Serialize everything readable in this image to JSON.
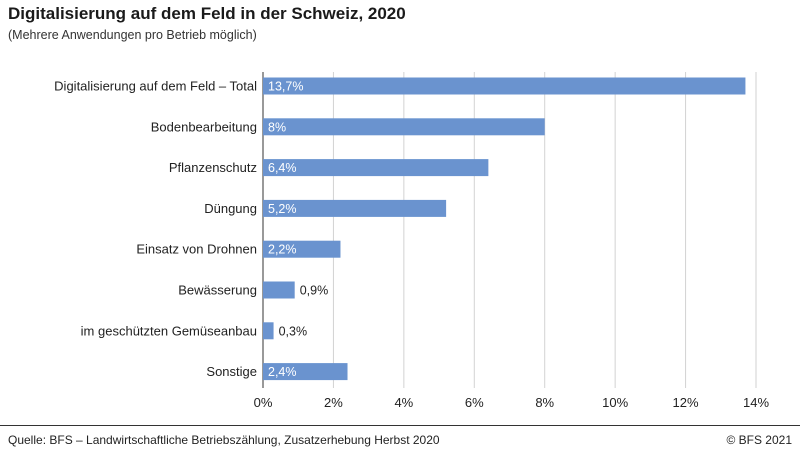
{
  "header": {
    "title": "Digitalisierung auf dem Feld in der Schweiz, 2020",
    "subtitle": "(Mehrere Anwendungen pro Betrieb möglich)"
  },
  "footer": {
    "source": "Quelle: BFS – Landwirtschaftliche Betriebszählung, Zusatzerhebung Herbst 2020",
    "copyright": "© BFS 2021"
  },
  "colors": {
    "bar": "#6a93cf",
    "grid": "#d2d2d2",
    "axis": "#333333"
  },
  "chart_data": {
    "type": "bar",
    "orientation": "horizontal",
    "title": "Digitalisierung auf dem Feld in der Schweiz, 2020",
    "subtitle": "(Mehrere Anwendungen pro Betrieb möglich)",
    "categories": [
      "Digitalisierung auf dem Feld – Total",
      "Bodenbearbeitung",
      "Pflanzenschutz",
      "Düngung",
      "Einsatz von Drohnen",
      "Bewässerung",
      "im geschützten Gemüseanbau",
      "Sonstige"
    ],
    "values": [
      13.7,
      8,
      6.4,
      5.2,
      2.2,
      0.9,
      0.3,
      2.4
    ],
    "value_labels": [
      "13,7%",
      "8%",
      "6,4%",
      "5,2%",
      "2,2%",
      "0,9%",
      "0,3%",
      "2,4%"
    ],
    "xlim": [
      0,
      14
    ],
    "xticks": [
      0,
      2,
      4,
      6,
      8,
      10,
      12,
      14
    ],
    "xtick_labels": [
      "0%",
      "2%",
      "4%",
      "6%",
      "8%",
      "10%",
      "12%",
      "14%"
    ],
    "grid": true,
    "legend": "none"
  }
}
